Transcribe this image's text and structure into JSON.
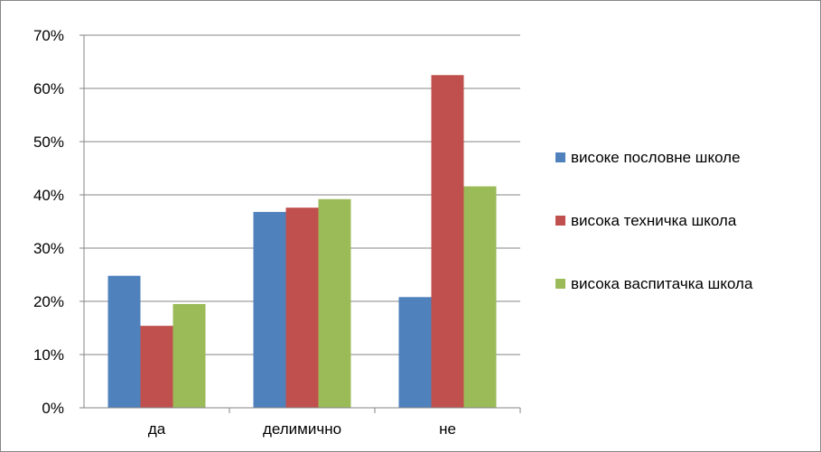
{
  "chart_data": {
    "type": "bar",
    "title": "",
    "xlabel": "",
    "ylabel": "",
    "categories": [
      "да",
      "делимично",
      "не"
    ],
    "series": [
      {
        "name": "високе пословне школе",
        "values": [
          24.8,
          36.8,
          20.8
        ],
        "color": "#4F81BD"
      },
      {
        "name": "висока техничка школа",
        "values": [
          15.4,
          37.6,
          62.5
        ],
        "color": "#C0504D"
      },
      {
        "name": "висока васпитачка школа",
        "values": [
          19.5,
          39.2,
          41.6
        ],
        "color": "#9BBB59"
      }
    ],
    "ylim": [
      0,
      70
    ],
    "yticks": [
      "0%",
      "10%",
      "20%",
      "30%",
      "40%",
      "50%",
      "60%",
      "70%"
    ],
    "grid": true,
    "legend_position": "right"
  }
}
